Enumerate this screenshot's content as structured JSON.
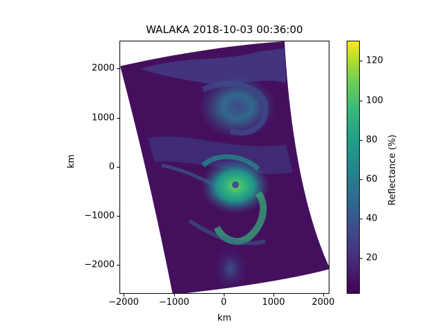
{
  "figure": {
    "title": "WALAKA 2018-10-03 00:36:00",
    "xlabel": "km",
    "ylabel": "km",
    "x_ticks": [
      "−2000",
      "−1000",
      "0",
      "1000",
      "2000"
    ],
    "y_ticks": [
      "2000",
      "1000",
      "0",
      "−1000",
      "−2000"
    ],
    "colorbar": {
      "label": "Reflectance (%)",
      "ticks": [
        "120",
        "100",
        "80",
        "60",
        "40",
        "20"
      ],
      "colormap": "viridis",
      "colors": [
        "#440154",
        "#3e4989",
        "#26828e",
        "#35b779",
        "#fde725"
      ]
    },
    "image": {
      "description_colors": {
        "background": "#440154",
        "cloud_low": "#3b528b",
        "cloud_mid": "#21918c",
        "cloud_high": "#5ec962"
      }
    }
  }
}
